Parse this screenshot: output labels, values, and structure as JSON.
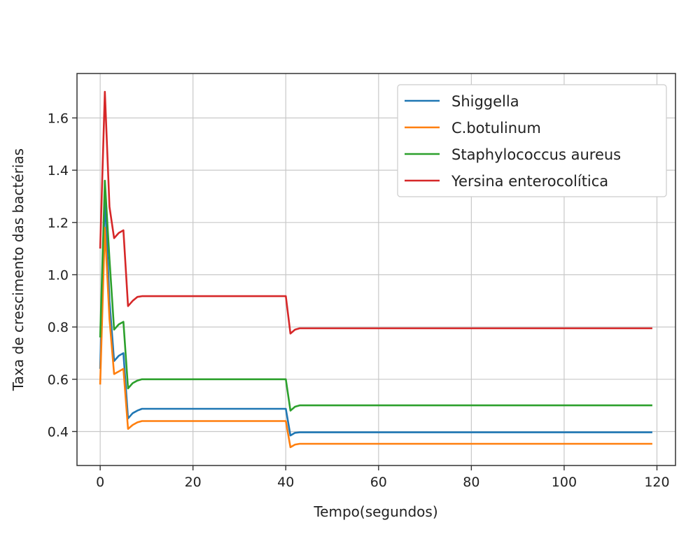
{
  "chart_data": {
    "type": "line",
    "xlabel": "Tempo(segundos)",
    "ylabel": "Taxa de crescimento das bactérias",
    "xlim": [
      -5,
      124
    ],
    "ylim": [
      0.27,
      1.77
    ],
    "xticks": [
      0,
      20,
      40,
      60,
      80,
      100,
      120
    ],
    "yticks": [
      0.4,
      0.6,
      0.8,
      1.0,
      1.2,
      1.4,
      1.6
    ],
    "grid": true,
    "legend": "top-right",
    "series": [
      {
        "name": "Shiggella",
        "color": "#1f77b4",
        "points": [
          [
            0,
            0.64
          ],
          [
            1,
            1.3
          ],
          [
            2,
            0.9
          ],
          [
            3,
            0.67
          ],
          [
            4,
            0.69
          ],
          [
            5,
            0.7
          ],
          [
            6,
            0.45
          ],
          [
            7,
            0.47
          ],
          [
            8,
            0.48
          ],
          [
            9,
            0.487
          ],
          [
            40,
            0.487
          ],
          [
            41,
            0.385
          ],
          [
            42,
            0.395
          ],
          [
            43,
            0.397
          ],
          [
            119,
            0.397
          ]
        ]
      },
      {
        "name": "C.botulinum",
        "color": "#ff7f0e",
        "points": [
          [
            0,
            0.58
          ],
          [
            1,
            1.18
          ],
          [
            2,
            0.83
          ],
          [
            3,
            0.62
          ],
          [
            4,
            0.63
          ],
          [
            5,
            0.64
          ],
          [
            6,
            0.41
          ],
          [
            7,
            0.425
          ],
          [
            8,
            0.435
          ],
          [
            9,
            0.44
          ],
          [
            40,
            0.44
          ],
          [
            41,
            0.34
          ],
          [
            42,
            0.35
          ],
          [
            43,
            0.353
          ],
          [
            119,
            0.353
          ]
        ]
      },
      {
        "name": "Staphylococcus aureus",
        "color": "#2ca02c",
        "points": [
          [
            0,
            0.76
          ],
          [
            1,
            1.36
          ],
          [
            2,
            1.06
          ],
          [
            3,
            0.79
          ],
          [
            4,
            0.81
          ],
          [
            5,
            0.82
          ],
          [
            6,
            0.565
          ],
          [
            7,
            0.585
          ],
          [
            8,
            0.595
          ],
          [
            9,
            0.6
          ],
          [
            40,
            0.6
          ],
          [
            41,
            0.48
          ],
          [
            42,
            0.495
          ],
          [
            43,
            0.5
          ],
          [
            119,
            0.5
          ]
        ]
      },
      {
        "name": "Yersina enterocolítica",
        "color": "#d62728",
        "points": [
          [
            0,
            1.1
          ],
          [
            1,
            1.7
          ],
          [
            2,
            1.26
          ],
          [
            3,
            1.14
          ],
          [
            4,
            1.16
          ],
          [
            5,
            1.17
          ],
          [
            6,
            0.88
          ],
          [
            7,
            0.9
          ],
          [
            8,
            0.915
          ],
          [
            9,
            0.918
          ],
          [
            40,
            0.918
          ],
          [
            41,
            0.775
          ],
          [
            42,
            0.79
          ],
          [
            43,
            0.795
          ],
          [
            119,
            0.795
          ]
        ]
      }
    ]
  }
}
